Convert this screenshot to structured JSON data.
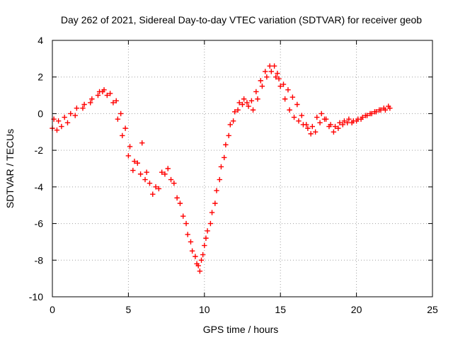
{
  "chart_data": {
    "type": "scatter",
    "title": "Day 262 of 2021, Sidereal Day-to-day VTEC variation (SDTVAR) for receiver geob",
    "xlabel": "GPS time / hours",
    "ylabel": "SDTVAR / TECUs",
    "xlim": [
      0,
      25
    ],
    "ylim": [
      -10,
      4
    ],
    "xticks": [
      "0",
      "5",
      "10",
      "15",
      "20",
      "25"
    ],
    "yticks": [
      "4",
      "2",
      "0",
      "-2",
      "-4",
      "-6",
      "-8",
      "-10"
    ],
    "grid": true,
    "marker": "plus",
    "series": [
      {
        "color": "#ff0000",
        "x": [
          0.0,
          0.3,
          0.6,
          1.0,
          1.5,
          2.0,
          2.5,
          3.0,
          3.3,
          3.6,
          4.0,
          4.3,
          4.6,
          5.0,
          5.3,
          5.6,
          5.9,
          6.2,
          6.6,
          7.0,
          7.4,
          7.8,
          8.2,
          8.6,
          8.9,
          9.2,
          9.5,
          9.7,
          9.9,
          10.1,
          10.4,
          10.7,
          11.0,
          11.3,
          11.6,
          11.9,
          12.2,
          12.5,
          12.8,
          13.1,
          13.4,
          13.7,
          14.0,
          14.3,
          14.6,
          14.8,
          15.0,
          15.3,
          15.6,
          15.9,
          16.2,
          16.5,
          16.8,
          17.1,
          17.4,
          17.7,
          18.0,
          18.3,
          18.6,
          18.9,
          19.2,
          19.5,
          19.8,
          20.1,
          20.4,
          20.7,
          21.0,
          21.3,
          21.6,
          21.9,
          22.2
        ],
        "y": [
          -0.8,
          -0.9,
          -0.7,
          -0.5,
          -0.1,
          0.3,
          0.6,
          1.0,
          1.2,
          1.0,
          0.6,
          -0.3,
          -1.2,
          -2.3,
          -3.1,
          -2.7,
          -1.6,
          -3.2,
          -4.4,
          -4.1,
          -3.3,
          -3.6,
          -4.6,
          -5.6,
          -6.6,
          -7.5,
          -8.2,
          -8.6,
          -7.7,
          -6.8,
          -6.0,
          -4.9,
          -3.6,
          -2.4,
          -1.2,
          -0.4,
          0.2,
          0.5,
          0.6,
          0.7,
          1.2,
          1.8,
          2.3,
          2.6,
          2.6,
          2.2,
          1.5,
          0.8,
          0.2,
          -0.2,
          -0.4,
          -0.6,
          -0.8,
          -0.7,
          -0.2,
          0.0,
          -0.3,
          -0.6,
          -0.7,
          -0.5,
          -0.4,
          -0.3,
          -0.4,
          -0.3,
          -0.2,
          -0.1,
          0.0,
          0.1,
          0.2,
          0.2,
          0.3
        ]
      },
      {
        "color": "#ff0000",
        "x": [
          0.1,
          0.4,
          0.8,
          1.2,
          1.6,
          2.1,
          2.6,
          3.1,
          3.4,
          3.8,
          4.2,
          4.5,
          4.8,
          5.1,
          5.4,
          5.8,
          6.1,
          6.4,
          6.8,
          7.2,
          7.6,
          8.0,
          8.4,
          8.8,
          9.1,
          9.4,
          9.6,
          9.8,
          10.0,
          10.2,
          10.5,
          10.8,
          11.1,
          11.4,
          11.7,
          12.0,
          12.3,
          12.6,
          12.9,
          13.2,
          13.5,
          13.8,
          14.1,
          14.4,
          14.7,
          14.9,
          15.2,
          15.5,
          15.8,
          16.1,
          16.4,
          16.7,
          17.0,
          17.3,
          17.6,
          17.9,
          18.2,
          18.5,
          18.8,
          19.1,
          19.4,
          19.7,
          20.0,
          20.3,
          20.6,
          20.9,
          21.2,
          21.5,
          21.8,
          22.1
        ],
        "y": [
          -0.3,
          -0.4,
          -0.2,
          0.0,
          0.3,
          0.5,
          0.8,
          1.2,
          1.3,
          1.1,
          0.7,
          0.0,
          -0.8,
          -1.8,
          -2.6,
          -3.3,
          -3.6,
          -3.8,
          -4.0,
          -3.2,
          -3.0,
          -3.8,
          -4.9,
          -6.0,
          -7.0,
          -7.8,
          -8.3,
          -8.0,
          -7.2,
          -6.4,
          -5.4,
          -4.2,
          -2.9,
          -1.7,
          -0.6,
          0.1,
          0.6,
          0.8,
          0.4,
          0.2,
          0.8,
          1.5,
          2.0,
          2.3,
          2.0,
          1.9,
          1.6,
          1.3,
          0.9,
          0.5,
          -0.1,
          -0.6,
          -1.1,
          -1.0,
          -0.5,
          -0.3,
          -0.7,
          -1.0,
          -0.8,
          -0.6,
          -0.5,
          -0.5,
          -0.4,
          -0.3,
          -0.1,
          0.0,
          0.1,
          0.2,
          0.3,
          0.4
        ]
      }
    ]
  }
}
